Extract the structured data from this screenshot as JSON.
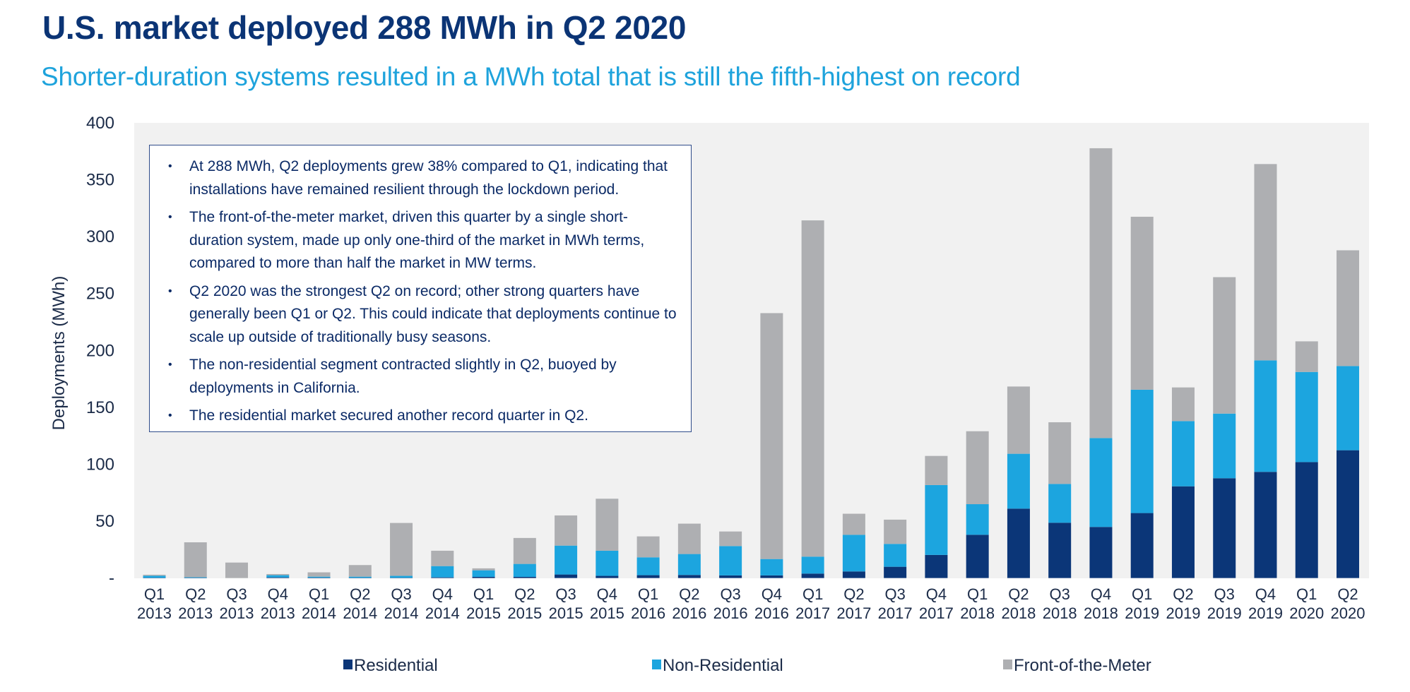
{
  "header": {
    "title": "U.S. market deployed 288 MWh in Q2 2020",
    "subtitle": "Shorter-duration systems resulted in a MWh total that is still the fifth-highest on record"
  },
  "notes": [
    {
      "bullet": "•",
      "text": "At 288 MWh, Q2 deployments grew 38% compared to Q1, indicating that installations have remained resilient through the lockdown period."
    },
    {
      "bullet": "•",
      "text": "The front-of-the-meter market, driven this quarter by a single short-duration system, made up only one-third of the market in MWh terms, compared to more than half the market in MW terms."
    },
    {
      "bullet": "•",
      "text": "Q2 2020 was the strongest Q2 on record; other strong quarters have generally been Q1 or Q2. This could indicate that deployments continue to scale up outside of traditionally busy seasons."
    },
    {
      "bullet": "•",
      "text": "The non-residential segment contracted slightly in Q2, buoyed by deployments in California."
    },
    {
      "bullet": "•",
      "text": "The residential market secured another record quarter in Q2."
    }
  ],
  "colors": {
    "residential": "#0b3678",
    "non_residential": "#1ca5df",
    "front_of_the_meter": "#aeafb2",
    "plot_background": "#f1f1f1",
    "title": "#0b3475",
    "subtitle": "#1ea3dc"
  },
  "chart_data": {
    "type": "bar",
    "stacked": true,
    "title": "U.S. market deployed 288 MWh in Q2 2020",
    "subtitle": "Shorter-duration systems resulted in a MWh total that is still the fifth-highest on record",
    "xlabel": "",
    "ylabel": "Deployments (MWh)",
    "ylim": [
      0,
      400
    ],
    "yticks": [
      0,
      50,
      100,
      150,
      200,
      250,
      300,
      350,
      400
    ],
    "ytick_labels": [
      "-",
      "50",
      "100",
      "150",
      "200",
      "250",
      "300",
      "350",
      "400"
    ],
    "grid": false,
    "legend_position": "bottom",
    "categories": [
      [
        "Q1",
        "2013"
      ],
      [
        "Q2",
        "2013"
      ],
      [
        "Q3",
        "2013"
      ],
      [
        "Q4",
        "2013"
      ],
      [
        "Q1",
        "2014"
      ],
      [
        "Q2",
        "2014"
      ],
      [
        "Q3",
        "2014"
      ],
      [
        "Q4",
        "2014"
      ],
      [
        "Q1",
        "2015"
      ],
      [
        "Q2",
        "2015"
      ],
      [
        "Q3",
        "2015"
      ],
      [
        "Q4",
        "2015"
      ],
      [
        "Q1",
        "2016"
      ],
      [
        "Q2",
        "2016"
      ],
      [
        "Q3",
        "2016"
      ],
      [
        "Q4",
        "2016"
      ],
      [
        "Q1",
        "2017"
      ],
      [
        "Q2",
        "2017"
      ],
      [
        "Q3",
        "2017"
      ],
      [
        "Q4",
        "2017"
      ],
      [
        "Q1",
        "2018"
      ],
      [
        "Q2",
        "2018"
      ],
      [
        "Q3",
        "2018"
      ],
      [
        "Q4",
        "2018"
      ],
      [
        "Q1",
        "2019"
      ],
      [
        "Q2",
        "2019"
      ],
      [
        "Q3",
        "2019"
      ],
      [
        "Q4",
        "2019"
      ],
      [
        "Q1",
        "2020"
      ],
      [
        "Q2",
        "2020"
      ]
    ],
    "series": [
      {
        "name": "Residential",
        "key": "residential",
        "values": [
          0.2,
          0.2,
          0,
          0.6,
          0.4,
          0.2,
          0.2,
          0.6,
          1.0,
          1.0,
          3.1,
          1.9,
          2.5,
          2.7,
          2.3,
          2.3,
          3.9,
          5.8,
          9.9,
          20.3,
          38.0,
          61.0,
          48.6,
          44.9,
          57.1,
          80.6,
          87.7,
          93.3,
          101.9,
          112.3
        ]
      },
      {
        "name": "Non-Residential",
        "key": "non_residential",
        "values": [
          1.8,
          0.5,
          0,
          1.9,
          0.8,
          1.0,
          1.7,
          9.9,
          5.8,
          11.4,
          25.4,
          22.1,
          15.7,
          18.4,
          25.8,
          14.4,
          14.9,
          32.2,
          20.1,
          61.4,
          26.9,
          48.2,
          34.1,
          78.1,
          108.4,
          57.3,
          56.8,
          98.0,
          79.2,
          74.0
        ]
      },
      {
        "name": "Front-of-the-Meter",
        "key": "front_of_the_meter",
        "values": [
          0.9,
          30.7,
          13.6,
          1.0,
          3.8,
          10.2,
          46.5,
          13.5,
          1.7,
          22.8,
          26.5,
          45.7,
          18.4,
          26.7,
          12.8,
          216.1,
          295.5,
          18.5,
          21.3,
          25.6,
          64.1,
          59.1,
          54.2,
          254.7,
          152.0,
          29.6,
          119.9,
          172.5,
          26.9,
          101.7
        ]
      }
    ],
    "totals": [
      2.9,
      31.4,
      13.6,
      3.5,
      5.0,
      11.4,
      48.4,
      24.0,
      8.5,
      35.2,
      55.0,
      69.7,
      36.6,
      47.8,
      40.9,
      232.8,
      314.3,
      56.5,
      51.3,
      107.3,
      129.0,
      168.3,
      136.9,
      377.7,
      317.5,
      167.5,
      264.4,
      363.8,
      208.0,
      288.0
    ]
  }
}
